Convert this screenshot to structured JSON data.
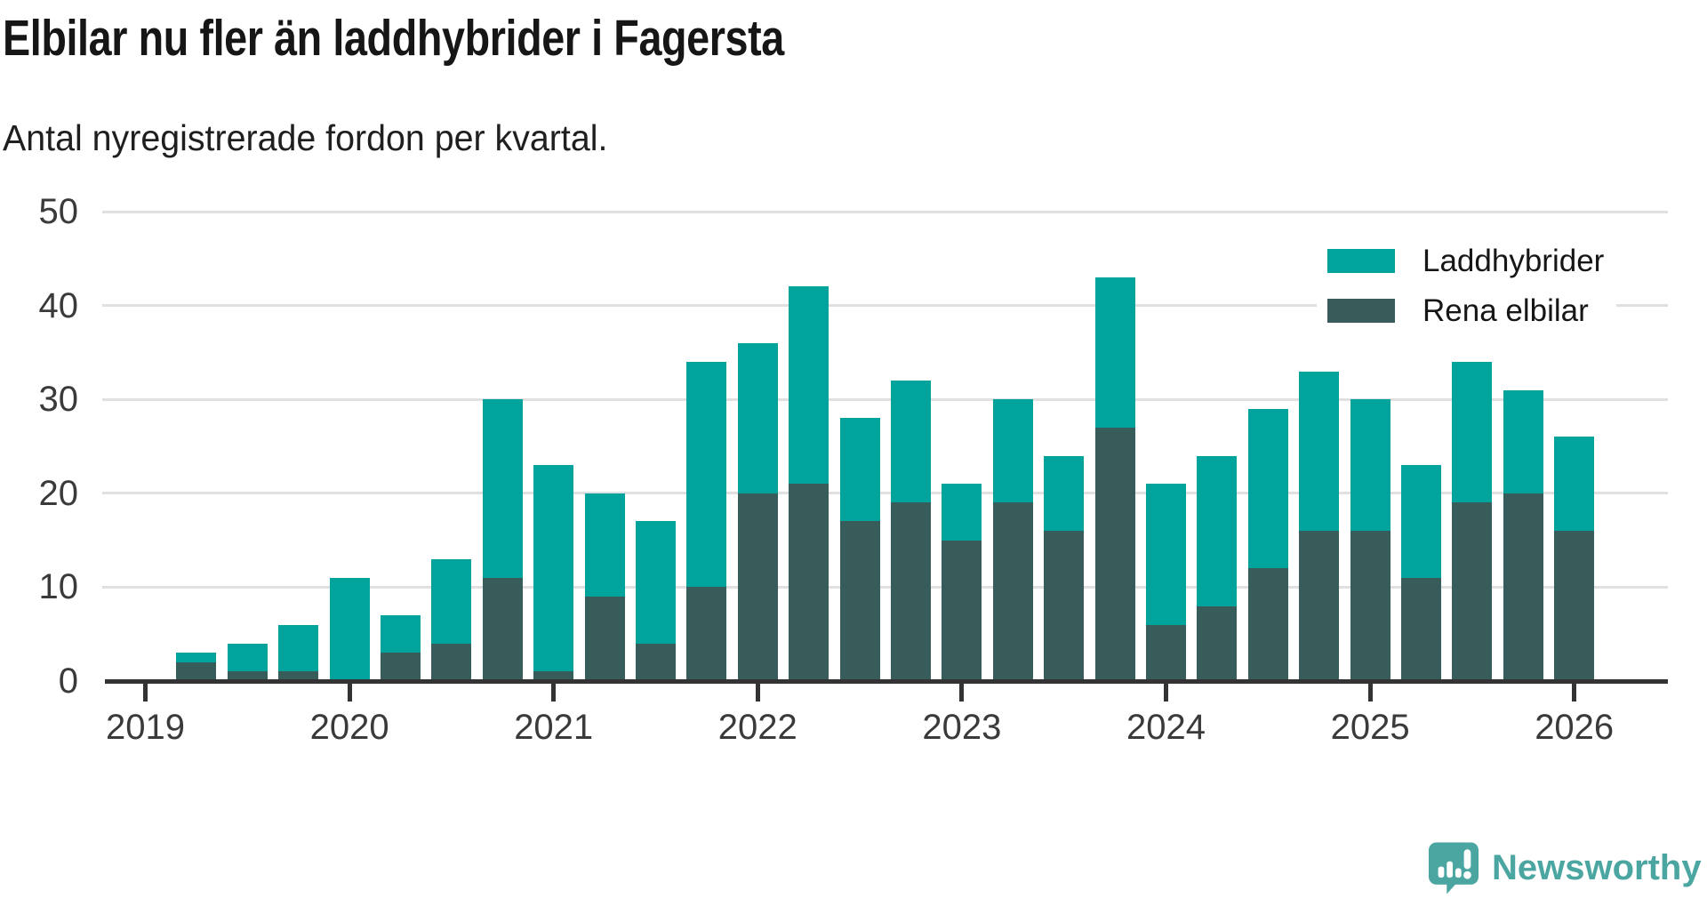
{
  "header": {
    "title": "Elbilar nu fler än laddhybrider i Fagersta",
    "subtitle": "Antal nyregistrerade fordon per kvartal."
  },
  "legend": {
    "items": [
      {
        "label": "Laddhybrider",
        "color": "#00a49c"
      },
      {
        "label": "Rena elbilar",
        "color": "#375c59"
      }
    ]
  },
  "chart_data": {
    "type": "bar",
    "stacked": true,
    "title": "Elbilar nu fler än laddhybrider i Fagersta",
    "subtitle": "Antal nyregistrerade fordon per kvartal.",
    "xlabel": "",
    "ylabel": "",
    "ylim": [
      0,
      50
    ],
    "y_ticks": [
      0,
      10,
      20,
      30,
      40,
      50
    ],
    "x_tick_labels": [
      "2019",
      "2020",
      "2021",
      "2022",
      "2023",
      "2024",
      "2025",
      "2026"
    ],
    "grid": true,
    "legend_position": "top-right",
    "categories": [
      "2019 Q2",
      "2019 Q3",
      "2019 Q4",
      "2020 Q1",
      "2020 Q2",
      "2020 Q3",
      "2020 Q4",
      "2021 Q1",
      "2021 Q2",
      "2021 Q3",
      "2021 Q4",
      "2022 Q1",
      "2022 Q2",
      "2022 Q3",
      "2022 Q4",
      "2023 Q1",
      "2023 Q2",
      "2023 Q3",
      "2023 Q4",
      "2024 Q1",
      "2024 Q2",
      "2024 Q3",
      "2024 Q4",
      "2025 Q1",
      "2025 Q2",
      "2025 Q3",
      "2025 Q4",
      "2026 Q1"
    ],
    "series": [
      {
        "name": "Laddhybrider",
        "color": "#00a49c",
        "stack": "top",
        "values": [
          1,
          3,
          5,
          11,
          4,
          9,
          19,
          22,
          11,
          13,
          24,
          16,
          21,
          11,
          13,
          6,
          11,
          8,
          16,
          15,
          16,
          17,
          17,
          14,
          12,
          15,
          11,
          10
        ]
      },
      {
        "name": "Rena elbilar",
        "color": "#375c59",
        "stack": "bottom",
        "values": [
          2,
          1,
          1,
          0,
          3,
          4,
          11,
          1,
          9,
          4,
          10,
          20,
          21,
          17,
          19,
          15,
          19,
          16,
          27,
          6,
          8,
          12,
          16,
          16,
          11,
          19,
          20,
          16
        ]
      }
    ],
    "totals": [
      3,
      4,
      6,
      11,
      7,
      13,
      30,
      23,
      20,
      17,
      34,
      36,
      42,
      28,
      32,
      21,
      30,
      24,
      43,
      21,
      24,
      29,
      33,
      30,
      23,
      34,
      31,
      26
    ]
  },
  "branding": {
    "wordmark": "Newsworthy",
    "color": "#4ba6a2",
    "icon": "newsworthy-speech-bubble-bars-icon"
  }
}
